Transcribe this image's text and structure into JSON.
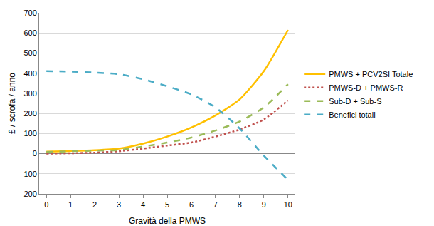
{
  "chart_data": {
    "type": "line",
    "x_label": "Gravità della PMWS",
    "y_label": "£ / scrofa / anno",
    "x": [
      0,
      1,
      2,
      3,
      4,
      5,
      6,
      7,
      8,
      9,
      10
    ],
    "series": [
      {
        "name": "PMWS + PCV2SI Totale",
        "color": "#ffc000",
        "line_style": "solid",
        "values": [
          10,
          13,
          17,
          25,
          50,
          85,
          130,
          190,
          270,
          410,
          615
        ]
      },
      {
        "name": "PMWS-D + PMWS-R",
        "color": "#c0504d",
        "line_style": "dotted",
        "values": [
          0,
          2,
          5,
          12,
          25,
          40,
          55,
          85,
          120,
          170,
          265
        ]
      },
      {
        "name": "Sub-D + Sub-S",
        "color": "#9bbb59",
        "line_style": "dashed",
        "values": [
          8,
          12,
          15,
          18,
          35,
          55,
          80,
          115,
          160,
          230,
          345
        ]
      },
      {
        "name": "Benefici totali",
        "color": "#4bacc6",
        "line_style": "dashed",
        "values": [
          410,
          408,
          403,
          395,
          370,
          335,
          295,
          230,
          125,
          -10,
          -130
        ]
      }
    ],
    "xlim": [
      -0.3,
      10.3
    ],
    "xticks": [
      0,
      1,
      2,
      3,
      4,
      5,
      6,
      7,
      8,
      9,
      10
    ],
    "ylim": [
      -200,
      700
    ],
    "yticks": [
      -200,
      -100,
      0,
      100,
      200,
      300,
      400,
      500,
      600,
      700
    ],
    "grid": true,
    "legend": "right"
  }
}
